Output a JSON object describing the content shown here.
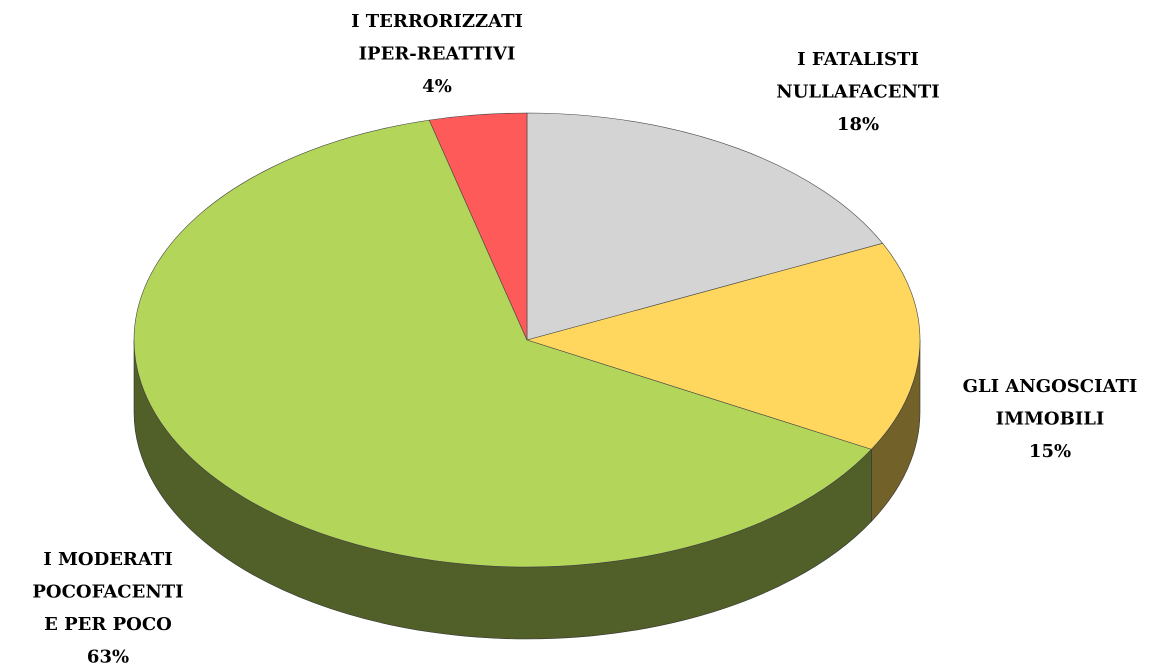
{
  "chart_data": {
    "type": "pie",
    "categories": [
      "I FATALISTI\nNULLAFACENTI",
      "GLI ANGOSCIATI\nIMMOBILI",
      "I MODERATI\nPOCOFACENTI\nE PER POCO",
      "I TERRORIZZATI\nIPER-REATTIVI"
    ],
    "values": [
      18,
      15,
      63,
      4
    ],
    "value_labels": [
      "18%",
      "15%",
      "63%",
      "4%"
    ],
    "colors": [
      "#d4d4d4",
      "#ffd75e",
      "#b3d65a",
      "#ff5a5a"
    ]
  }
}
